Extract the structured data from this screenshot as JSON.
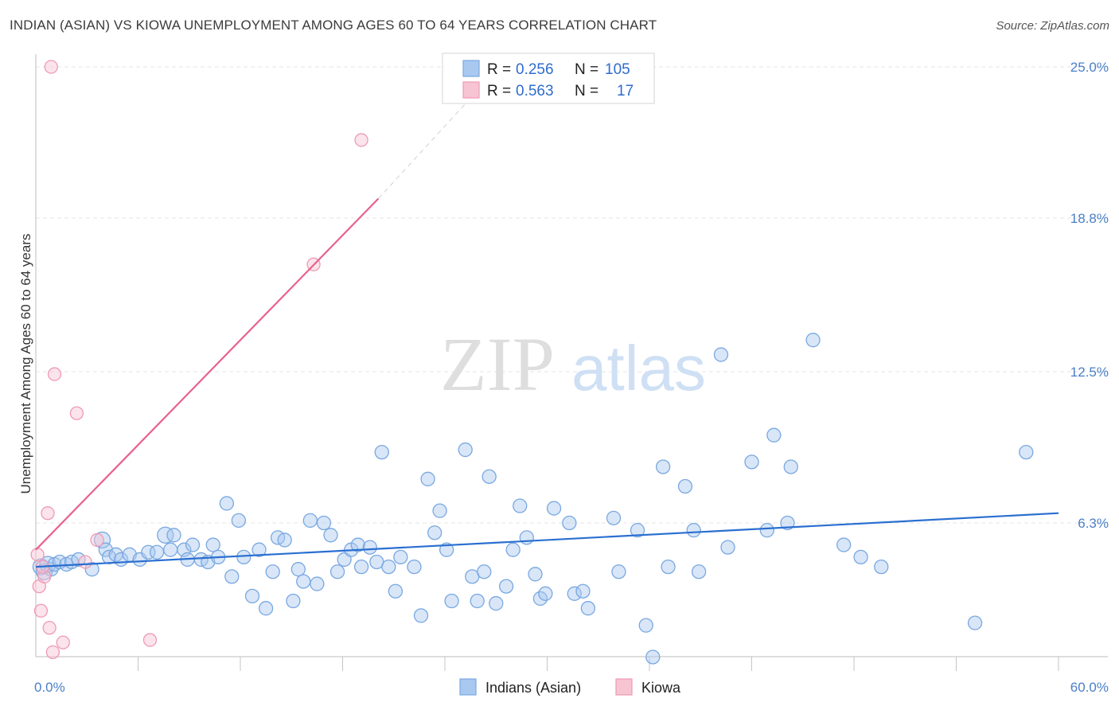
{
  "title": "INDIAN (ASIAN) VS KIOWA UNEMPLOYMENT AMONG AGES 60 TO 64 YEARS CORRELATION CHART",
  "source": "Source: ZipAtlas.com",
  "watermark": {
    "zip": "ZIP",
    "atlas": "atlas"
  },
  "legend": {
    "r_label": "R =",
    "n_label": "N =",
    "rows": [
      {
        "r": "0.256",
        "n": "105"
      },
      {
        "r": "0.563",
        "n": "17"
      }
    ]
  },
  "bottom_legend": [
    "Indians (Asian)",
    "Kiowa"
  ],
  "colors": {
    "indian_fill": "#a9c8f0",
    "indian_stroke": "#7aa8e0",
    "indian_line": "#2a6fd0",
    "kiowa_fill": "#f7c4d3",
    "kiowa_stroke": "#ee9ab5",
    "kiowa_line": "#e8628c",
    "tick_text": "#4a7fc8",
    "grid": "#e4e4e4"
  },
  "chart_data": {
    "type": "scatter",
    "xlabel": "",
    "ylabel": "Unemployment Among Ages 60 to 64 years",
    "xlim": [
      0,
      60
    ],
    "ylim": [
      0,
      25.5
    ],
    "x_tick_labels": [
      {
        "value": 0,
        "label": "0.0%"
      },
      {
        "value": 60,
        "label": "60.0%"
      }
    ],
    "y_tick_labels": [
      {
        "value": 6.3,
        "label": "6.3%"
      },
      {
        "value": 12.5,
        "label": "12.5%"
      },
      {
        "value": 18.8,
        "label": "18.8%"
      },
      {
        "value": 25.0,
        "label": "25.0%"
      }
    ],
    "grid": true,
    "legend_position": "top-center",
    "series": [
      {
        "name": "Indians (Asian)",
        "r": 0.256,
        "n": 105,
        "trend": {
          "x0": 0,
          "y0": 4.5,
          "x1": 60,
          "y1": 6.7
        },
        "points": [
          [
            0.3,
            4.5
          ],
          [
            0.5,
            4.3
          ],
          [
            0.7,
            4.6
          ],
          [
            0.9,
            4.4
          ],
          [
            1.1,
            4.6
          ],
          [
            1.4,
            4.7
          ],
          [
            1.8,
            4.6
          ],
          [
            2.1,
            4.7
          ],
          [
            2.5,
            4.8
          ],
          [
            3.3,
            4.4
          ],
          [
            3.9,
            5.6
          ],
          [
            4.1,
            5.2
          ],
          [
            4.3,
            4.9
          ],
          [
            4.7,
            5.0
          ],
          [
            5.0,
            4.8
          ],
          [
            5.5,
            5.0
          ],
          [
            6.1,
            4.8
          ],
          [
            6.6,
            5.1
          ],
          [
            7.1,
            5.1
          ],
          [
            7.6,
            5.8
          ],
          [
            7.9,
            5.2
          ],
          [
            8.1,
            5.8
          ],
          [
            8.7,
            5.2
          ],
          [
            8.9,
            4.8
          ],
          [
            9.2,
            5.4
          ],
          [
            9.7,
            4.8
          ],
          [
            10.1,
            4.7
          ],
          [
            10.4,
            5.4
          ],
          [
            10.7,
            4.9
          ],
          [
            11.2,
            7.1
          ],
          [
            11.5,
            4.1
          ],
          [
            11.9,
            6.4
          ],
          [
            12.2,
            4.9
          ],
          [
            12.7,
            3.3
          ],
          [
            13.1,
            5.2
          ],
          [
            13.5,
            2.8
          ],
          [
            13.9,
            4.3
          ],
          [
            14.2,
            5.7
          ],
          [
            14.6,
            5.6
          ],
          [
            15.1,
            3.1
          ],
          [
            15.4,
            4.4
          ],
          [
            15.7,
            3.9
          ],
          [
            16.1,
            6.4
          ],
          [
            16.5,
            3.8
          ],
          [
            16.9,
            6.3
          ],
          [
            17.3,
            5.8
          ],
          [
            17.7,
            4.3
          ],
          [
            18.1,
            4.8
          ],
          [
            18.5,
            5.2
          ],
          [
            18.9,
            5.4
          ],
          [
            19.1,
            4.5
          ],
          [
            19.6,
            5.3
          ],
          [
            20.0,
            4.7
          ],
          [
            20.3,
            9.2
          ],
          [
            20.7,
            4.5
          ],
          [
            21.1,
            3.5
          ],
          [
            21.4,
            4.9
          ],
          [
            22.2,
            4.5
          ],
          [
            22.6,
            2.5
          ],
          [
            23.0,
            8.1
          ],
          [
            23.4,
            5.9
          ],
          [
            23.7,
            6.8
          ],
          [
            24.1,
            5.2
          ],
          [
            24.4,
            3.1
          ],
          [
            25.2,
            9.3
          ],
          [
            25.6,
            4.1
          ],
          [
            25.9,
            3.1
          ],
          [
            26.3,
            4.3
          ],
          [
            26.6,
            8.2
          ],
          [
            27.0,
            3.0
          ],
          [
            27.6,
            3.7
          ],
          [
            28.0,
            5.2
          ],
          [
            28.4,
            7.0
          ],
          [
            28.8,
            5.7
          ],
          [
            29.3,
            4.2
          ],
          [
            29.6,
            3.2
          ],
          [
            29.9,
            3.4
          ],
          [
            30.4,
            6.9
          ],
          [
            31.3,
            6.3
          ],
          [
            31.6,
            3.4
          ],
          [
            32.1,
            3.5
          ],
          [
            32.4,
            2.8
          ],
          [
            33.9,
            6.5
          ],
          [
            34.2,
            4.3
          ],
          [
            35.3,
            6.0
          ],
          [
            35.8,
            2.1
          ],
          [
            36.2,
            0.8
          ],
          [
            36.8,
            8.6
          ],
          [
            37.1,
            4.5
          ],
          [
            38.1,
            7.8
          ],
          [
            38.6,
            6.0
          ],
          [
            38.9,
            4.3
          ],
          [
            40.2,
            13.2
          ],
          [
            40.6,
            5.3
          ],
          [
            42.0,
            8.8
          ],
          [
            42.9,
            6.0
          ],
          [
            43.3,
            9.9
          ],
          [
            44.1,
            6.3
          ],
          [
            44.3,
            8.6
          ],
          [
            45.6,
            13.8
          ],
          [
            47.4,
            5.4
          ],
          [
            48.4,
            4.9
          ],
          [
            49.6,
            4.5
          ],
          [
            55.1,
            2.2
          ],
          [
            58.1,
            9.2
          ]
        ]
      },
      {
        "name": "Kiowa",
        "r": 0.563,
        "n": 17,
        "trend": {
          "x0": 0,
          "y0": 5.2,
          "x1": 20.1,
          "y1": 19.6
        },
        "trend_dashed_to": {
          "x": 26.4,
          "y": 24.4
        },
        "points": [
          [
            0.1,
            5.0
          ],
          [
            0.2,
            3.7
          ],
          [
            0.3,
            2.7
          ],
          [
            0.5,
            4.1
          ],
          [
            0.7,
            6.7
          ],
          [
            0.8,
            2.0
          ],
          [
            0.9,
            25.0
          ],
          [
            1.0,
            1.0
          ],
          [
            1.1,
            12.4
          ],
          [
            1.6,
            1.4
          ],
          [
            2.4,
            10.8
          ],
          [
            2.9,
            4.7
          ],
          [
            3.6,
            5.6
          ],
          [
            6.7,
            1.5
          ],
          [
            16.3,
            16.9
          ],
          [
            19.1,
            22.0
          ],
          [
            0.4,
            4.5
          ]
        ]
      }
    ]
  }
}
